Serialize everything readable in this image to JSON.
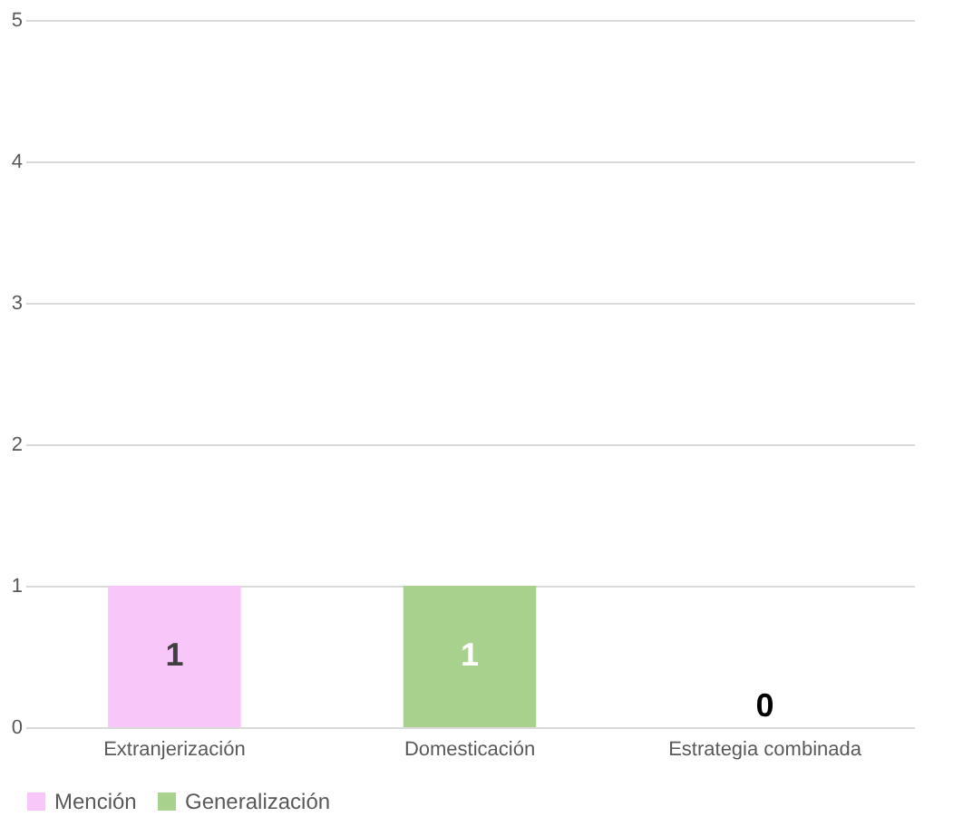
{
  "chart_data": {
    "type": "bar",
    "categories": [
      "Extranjerización",
      "Domesticación",
      "Estrategia combinada"
    ],
    "series": [
      {
        "name": "Mención",
        "color": "#f9c6f9",
        "values": [
          1,
          0,
          0
        ],
        "value_labels": [
          "1",
          null,
          null
        ]
      },
      {
        "name": "Generalización",
        "color": "#a9d18e",
        "values": [
          0,
          1,
          0
        ],
        "value_labels": [
          null,
          "1",
          null
        ]
      }
    ],
    "totals": [
      null,
      null,
      "0"
    ],
    "ylim": [
      0,
      5
    ],
    "yticks": [
      0,
      1,
      2,
      3,
      4,
      5
    ],
    "grid": "y",
    "legend": "bottom"
  }
}
